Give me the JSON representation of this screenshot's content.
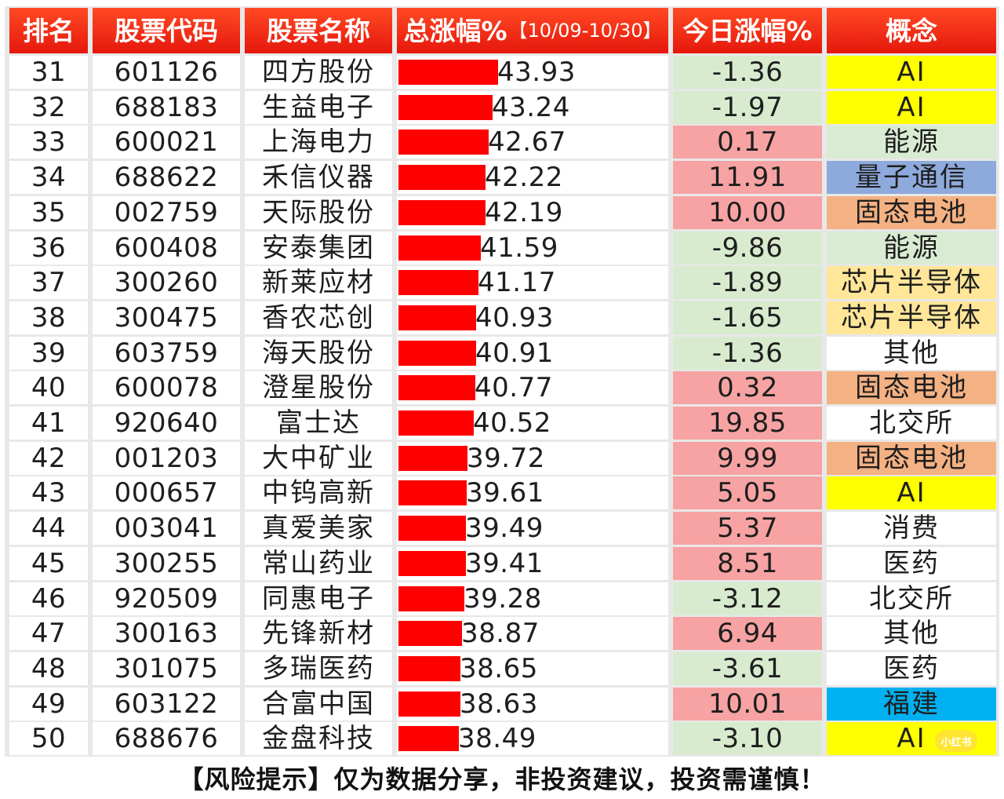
{
  "headers": {
    "rank": "排名",
    "code": "股票代码",
    "name": "股票名称",
    "total_gain": "总涨幅%",
    "total_gain_period": "【10/09-10/30】",
    "today_gain": "今日涨幅%",
    "concept": "概念"
  },
  "colors": {
    "header_bg": "#f2311a",
    "bar": "#ff0000",
    "today_up": "#f7a3a3",
    "today_down": "#d8ebcf",
    "AI": "#ffff00",
    "能源": "#d9ebd3",
    "量子通信": "#8ea9db",
    "固态电池": "#f4b183",
    "芯片半导体": "#ffe699",
    "福建": "#00b0f0",
    "其他": "#ffffff",
    "北交所": "#ffffff",
    "消费": "#ffffff",
    "医药": "#ffffff"
  },
  "chart_data": {
    "type": "table",
    "columns": [
      "排名",
      "股票代码",
      "股票名称",
      "总涨幅%【10/09-10/30】",
      "今日涨幅%",
      "概念"
    ],
    "rows": [
      {
        "rank": "31",
        "code": "601126",
        "name": "四方股份",
        "total_gain": "43.93",
        "today_gain": "-1.36",
        "concept": "AI"
      },
      {
        "rank": "32",
        "code": "688183",
        "name": "生益电子",
        "total_gain": "43.24",
        "today_gain": "-1.97",
        "concept": "AI"
      },
      {
        "rank": "33",
        "code": "600021",
        "name": "上海电力",
        "total_gain": "42.67",
        "today_gain": "0.17",
        "concept": "能源"
      },
      {
        "rank": "34",
        "code": "688622",
        "name": "禾信仪器",
        "total_gain": "42.22",
        "today_gain": "11.91",
        "concept": "量子通信"
      },
      {
        "rank": "35",
        "code": "002759",
        "name": "天际股份",
        "total_gain": "42.19",
        "today_gain": "10.00",
        "concept": "固态电池"
      },
      {
        "rank": "36",
        "code": "600408",
        "name": "安泰集团",
        "total_gain": "41.59",
        "today_gain": "-9.86",
        "concept": "能源"
      },
      {
        "rank": "37",
        "code": "300260",
        "name": "新莱应材",
        "total_gain": "41.17",
        "today_gain": "-1.89",
        "concept": "芯片半导体"
      },
      {
        "rank": "38",
        "code": "300475",
        "name": "香农芯创",
        "total_gain": "40.93",
        "today_gain": "-1.65",
        "concept": "芯片半导体"
      },
      {
        "rank": "39",
        "code": "603759",
        "name": "海天股份",
        "total_gain": "40.91",
        "today_gain": "-1.36",
        "concept": "其他"
      },
      {
        "rank": "40",
        "code": "600078",
        "name": "澄星股份",
        "total_gain": "40.77",
        "today_gain": "0.32",
        "concept": "固态电池"
      },
      {
        "rank": "41",
        "code": "920640",
        "name": "富士达",
        "total_gain": "40.52",
        "today_gain": "19.85",
        "concept": "北交所"
      },
      {
        "rank": "42",
        "code": "001203",
        "name": "大中矿业",
        "total_gain": "39.72",
        "today_gain": "9.99",
        "concept": "固态电池"
      },
      {
        "rank": "43",
        "code": "000657",
        "name": "中钨高新",
        "total_gain": "39.61",
        "today_gain": "5.05",
        "concept": "AI"
      },
      {
        "rank": "44",
        "code": "003041",
        "name": "真爱美家",
        "total_gain": "39.49",
        "today_gain": "5.37",
        "concept": "消费"
      },
      {
        "rank": "45",
        "code": "300255",
        "name": "常山药业",
        "total_gain": "39.41",
        "today_gain": "8.51",
        "concept": "医药"
      },
      {
        "rank": "46",
        "code": "920509",
        "name": "同惠电子",
        "total_gain": "39.28",
        "today_gain": "-3.12",
        "concept": "北交所"
      },
      {
        "rank": "47",
        "code": "300163",
        "name": "先锋新材",
        "total_gain": "38.87",
        "today_gain": "6.94",
        "concept": "其他"
      },
      {
        "rank": "48",
        "code": "301075",
        "name": "多瑞医药",
        "total_gain": "38.65",
        "today_gain": "-3.61",
        "concept": "医药"
      },
      {
        "rank": "49",
        "code": "603122",
        "name": "合富中国",
        "total_gain": "38.63",
        "today_gain": "10.01",
        "concept": "福建"
      },
      {
        "rank": "50",
        "code": "688676",
        "name": "金盘科技",
        "total_gain": "38.49",
        "today_gain": "-3.10",
        "concept": "AI"
      }
    ]
  },
  "footer": "【风险提示】仅为数据分享，非投资建议，投资需谨慎！",
  "watermark": "小红书"
}
